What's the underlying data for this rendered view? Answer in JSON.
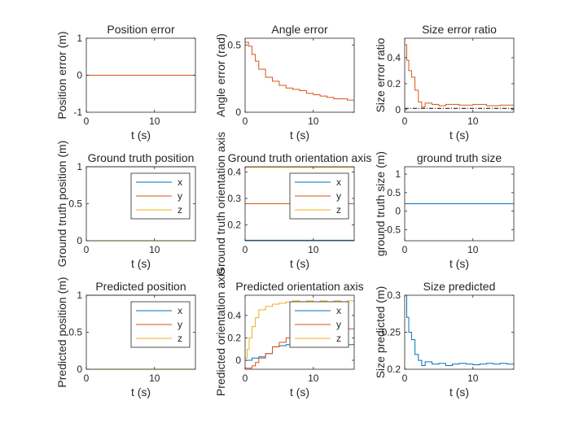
{
  "colors": {
    "x": "#0072BD",
    "y": "#D95319",
    "z": "#EDB120",
    "axis": "#262626",
    "reference": "#000000"
  },
  "chart_data": [
    {
      "type": "line",
      "title": "Position error",
      "xlabel": "t (s)",
      "ylabel": "Position error (m)",
      "xlim": [
        0,
        16
      ],
      "ylim": [
        -1,
        1
      ],
      "xticks": [
        0,
        10
      ],
      "yticks": [
        -1,
        0,
        1
      ],
      "ytick_labels": [
        "-1",
        "0",
        "1"
      ],
      "series": [
        {
          "name": "error",
          "color": "y",
          "step": false,
          "x": [
            0,
            16
          ],
          "y": [
            0,
            0
          ]
        }
      ]
    },
    {
      "type": "line",
      "title": "Angle error",
      "xlabel": "t (s)",
      "ylabel": "Angle error (rad)",
      "xlim": [
        0,
        16
      ],
      "ylim": [
        0,
        0.55
      ],
      "xticks": [
        0,
        10
      ],
      "yticks": [
        0,
        0.5
      ],
      "ytick_labels": [
        "0",
        "0.5"
      ],
      "series": [
        {
          "name": "error",
          "color": "y",
          "step": true,
          "x": [
            0,
            0.5,
            1,
            1.5,
            2,
            3,
            4,
            5,
            6,
            7,
            8,
            9,
            10,
            11,
            12,
            13,
            14,
            15,
            16
          ],
          "y": [
            0.52,
            0.49,
            0.43,
            0.38,
            0.32,
            0.26,
            0.23,
            0.2,
            0.18,
            0.17,
            0.16,
            0.14,
            0.13,
            0.12,
            0.11,
            0.1,
            0.1,
            0.09,
            0.09
          ]
        }
      ]
    },
    {
      "type": "line",
      "title": "Size error ratio",
      "xlabel": "t (s)",
      "ylabel": "Size error ratio",
      "xlim": [
        0,
        16
      ],
      "ylim": [
        -0.02,
        0.55
      ],
      "xticks": [
        0,
        10
      ],
      "yticks": [
        0,
        0.2,
        0.4
      ],
      "ytick_labels": [
        "0",
        "0.2",
        "0.4"
      ],
      "series": [
        {
          "name": "ratio",
          "color": "y",
          "step": true,
          "x": [
            0,
            0.3,
            0.6,
            1,
            1.5,
            2,
            2.5,
            3,
            4,
            5,
            6,
            8,
            10,
            12,
            14,
            16
          ],
          "y": [
            0.5,
            0.38,
            0.3,
            0.25,
            0.15,
            0.06,
            0.02,
            0.05,
            0.04,
            0.03,
            0.04,
            0.035,
            0.04,
            0.03,
            0.035,
            0.04
          ]
        },
        {
          "name": "reference",
          "color": "reference",
          "dash": true,
          "step": false,
          "x": [
            0,
            16
          ],
          "y": [
            0.01,
            0.01
          ]
        }
      ]
    },
    {
      "type": "line",
      "title": "Ground truth position",
      "xlabel": "t (s)",
      "ylabel": "Ground truth position (m)",
      "xlim": [
        0,
        16
      ],
      "ylim": [
        0,
        1
      ],
      "xticks": [
        0,
        10
      ],
      "yticks": [
        0,
        0.5,
        1
      ],
      "ytick_labels": [
        "0",
        "0.5",
        "1"
      ],
      "legend": [
        "x",
        "y",
        "z"
      ],
      "series": [
        {
          "name": "x",
          "color": "x",
          "step": false,
          "x": [
            0,
            16
          ],
          "y": [
            1,
            1
          ]
        },
        {
          "name": "y",
          "color": "y",
          "step": false,
          "x": [
            0,
            16
          ],
          "y": [
            0,
            0
          ]
        },
        {
          "name": "z",
          "color": "z",
          "step": false,
          "x": [
            0,
            16
          ],
          "y": [
            0,
            0
          ]
        }
      ]
    },
    {
      "type": "line",
      "title": "Ground truth orientation axis",
      "xlabel": "t (s)",
      "ylabel": "Ground truth orientation axis",
      "xlim": [
        0,
        16
      ],
      "ylim": [
        0.14,
        0.42
      ],
      "xticks": [
        0,
        10
      ],
      "yticks": [
        0.2,
        0.3,
        0.4
      ],
      "ytick_labels": [
        "0.2",
        "0.3",
        "0.4"
      ],
      "legend": [
        "x",
        "y",
        "z"
      ],
      "series": [
        {
          "name": "x",
          "color": "x",
          "step": false,
          "x": [
            0,
            16
          ],
          "y": [
            0.142,
            0.142
          ]
        },
        {
          "name": "y",
          "color": "y",
          "step": false,
          "x": [
            0,
            16
          ],
          "y": [
            0.28,
            0.28
          ]
        },
        {
          "name": "z",
          "color": "z",
          "step": false,
          "x": [
            0,
            16
          ],
          "y": [
            0.418,
            0.418
          ]
        }
      ]
    },
    {
      "type": "line",
      "title": "ground truth size",
      "xlabel": "t (s)",
      "ylabel": "ground truth size (m)",
      "xlim": [
        0,
        16
      ],
      "ylim": [
        -0.8,
        1.2
      ],
      "xticks": [
        0,
        10
      ],
      "yticks": [
        -0.5,
        0,
        0.5,
        1
      ],
      "ytick_labels": [
        "-0.5",
        "0",
        "0.5",
        "1"
      ],
      "series": [
        {
          "name": "size",
          "color": "x",
          "step": false,
          "x": [
            0,
            16
          ],
          "y": [
            0.2,
            0.2
          ]
        }
      ]
    },
    {
      "type": "line",
      "title": "Predicted position",
      "xlabel": "t (s)",
      "ylabel": "Predicted position (m)",
      "xlim": [
        0,
        16
      ],
      "ylim": [
        0,
        1
      ],
      "xticks": [
        0,
        10
      ],
      "yticks": [
        0,
        0.5,
        1
      ],
      "ytick_labels": [
        "0",
        "0.5",
        "1"
      ],
      "legend": [
        "x",
        "y",
        "z"
      ],
      "series": [
        {
          "name": "x",
          "color": "x",
          "step": false,
          "x": [
            0,
            16
          ],
          "y": [
            1,
            1
          ]
        },
        {
          "name": "y",
          "color": "y",
          "step": false,
          "x": [
            0,
            16
          ],
          "y": [
            0,
            0
          ]
        },
        {
          "name": "z",
          "color": "z",
          "step": false,
          "x": [
            0,
            16
          ],
          "y": [
            0,
            0
          ]
        }
      ]
    },
    {
      "type": "line",
      "title": "Predicted orientation axis",
      "xlabel": "t (s)",
      "ylabel": "Predicted orientation axis",
      "xlim": [
        0,
        16
      ],
      "ylim": [
        -0.08,
        0.58
      ],
      "xticks": [
        0,
        10
      ],
      "yticks": [
        0,
        0.2,
        0.4
      ],
      "ytick_labels": [
        "0",
        "0.2",
        "0.4"
      ],
      "legend": [
        "x",
        "y",
        "z"
      ],
      "series": [
        {
          "name": "x",
          "color": "x",
          "step": true,
          "x": [
            0,
            0.5,
            1,
            2,
            3,
            4,
            5,
            6,
            7,
            8,
            9,
            10,
            11,
            12,
            13,
            14,
            15,
            16
          ],
          "y": [
            0,
            0,
            0.02,
            0.03,
            0.06,
            0.12,
            0.13,
            0.14,
            0.15,
            0.14,
            0.15,
            0.14,
            0.15,
            0.16,
            0.14,
            0.15,
            0.14,
            0.15
          ]
        },
        {
          "name": "y",
          "color": "y",
          "step": true,
          "x": [
            0,
            0.5,
            1,
            1.5,
            2,
            3,
            4,
            5,
            6,
            7,
            8,
            9,
            10,
            11,
            12,
            13,
            14,
            15,
            16
          ],
          "y": [
            -0.07,
            -0.07,
            -0.05,
            -0.02,
            0.02,
            0.06,
            0.12,
            0.16,
            0.2,
            0.23,
            0.25,
            0.26,
            0.27,
            0.28,
            0.28,
            0.29,
            0.29,
            0.28,
            0.29
          ]
        },
        {
          "name": "z",
          "color": "z",
          "step": true,
          "x": [
            0,
            0.3,
            0.6,
            1,
            1.5,
            2,
            3,
            4,
            5,
            6,
            7,
            8,
            9,
            10,
            11,
            12,
            13,
            14,
            15,
            16
          ],
          "y": [
            0.02,
            0.1,
            0.2,
            0.3,
            0.38,
            0.45,
            0.48,
            0.5,
            0.51,
            0.52,
            0.53,
            0.52,
            0.53,
            0.52,
            0.53,
            0.52,
            0.53,
            0.52,
            0.53,
            0.52
          ]
        }
      ]
    },
    {
      "type": "line",
      "title": "Size predicted",
      "xlabel": "t (s)",
      "ylabel": "Size predicted (m)",
      "xlim": [
        0,
        16
      ],
      "ylim": [
        0.2,
        0.3
      ],
      "xticks": [
        0,
        10
      ],
      "yticks": [
        0.2,
        0.25,
        0.3
      ],
      "ytick_labels": [
        "0.2",
        "0.25",
        "0.3"
      ],
      "series": [
        {
          "name": "size",
          "color": "x",
          "step": true,
          "x": [
            0,
            0.3,
            0.6,
            1,
            1.5,
            2,
            2.5,
            3,
            4,
            5,
            6,
            7,
            8,
            9,
            10,
            11,
            12,
            13,
            14,
            15,
            16
          ],
          "y": [
            0.3,
            0.27,
            0.25,
            0.24,
            0.22,
            0.212,
            0.205,
            0.21,
            0.207,
            0.208,
            0.205,
            0.207,
            0.208,
            0.207,
            0.206,
            0.207,
            0.208,
            0.207,
            0.208,
            0.207,
            0.208
          ]
        }
      ]
    }
  ]
}
